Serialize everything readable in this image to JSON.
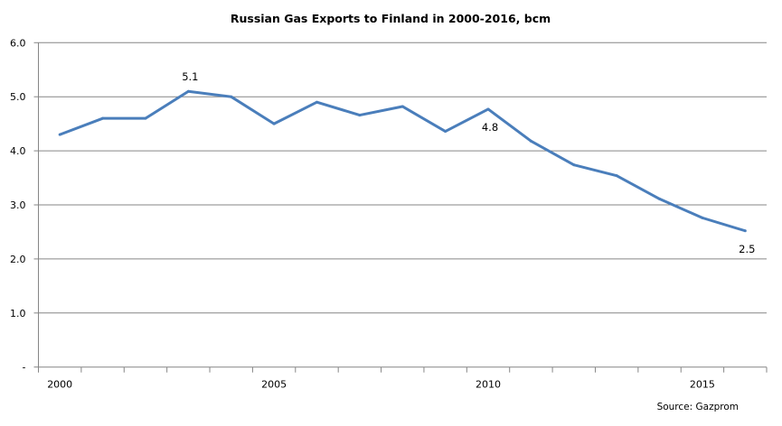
{
  "chart_data": {
    "type": "line",
    "title": "Russian Gas Exports to Finland in 2000-2016, bcm",
    "xlabel": "",
    "ylabel": "",
    "x": [
      2000,
      2001,
      2002,
      2003,
      2004,
      2005,
      2006,
      2007,
      2008,
      2009,
      2010,
      2011,
      2012,
      2013,
      2014,
      2015,
      2016
    ],
    "series": [
      {
        "name": "Russian gas exports to Finland",
        "color": "#4a7ebb",
        "values": [
          4.3,
          4.6,
          4.6,
          5.1,
          5.0,
          4.5,
          4.9,
          4.66,
          4.82,
          4.36,
          4.77,
          4.18,
          3.74,
          3.54,
          3.11,
          2.76,
          2.52
        ]
      }
    ],
    "ylim": [
      0,
      6
    ],
    "yticks": [
      {
        "value": 0,
        "label": "-"
      },
      {
        "value": 1,
        "label": "1.0"
      },
      {
        "value": 2,
        "label": "2.0"
      },
      {
        "value": 3,
        "label": "3.0"
      },
      {
        "value": 4,
        "label": "4.0"
      },
      {
        "value": 5,
        "label": "5.0"
      },
      {
        "value": 6,
        "label": "6.0"
      }
    ],
    "xticklabels": [
      {
        "year": 2000,
        "label": "2000"
      },
      {
        "year": 2005,
        "label": "2005"
      },
      {
        "year": 2010,
        "label": "2010"
      },
      {
        "year": 2015,
        "label": "2015"
      }
    ],
    "data_labels": [
      {
        "year": 2003,
        "label": "5.1",
        "position": "above"
      },
      {
        "year": 2010,
        "label": "4.8",
        "position": "below"
      },
      {
        "year": 2016,
        "label": "2.5",
        "position": "below"
      }
    ],
    "grid": true,
    "legend": "none",
    "source": "Source: Gazprom"
  }
}
